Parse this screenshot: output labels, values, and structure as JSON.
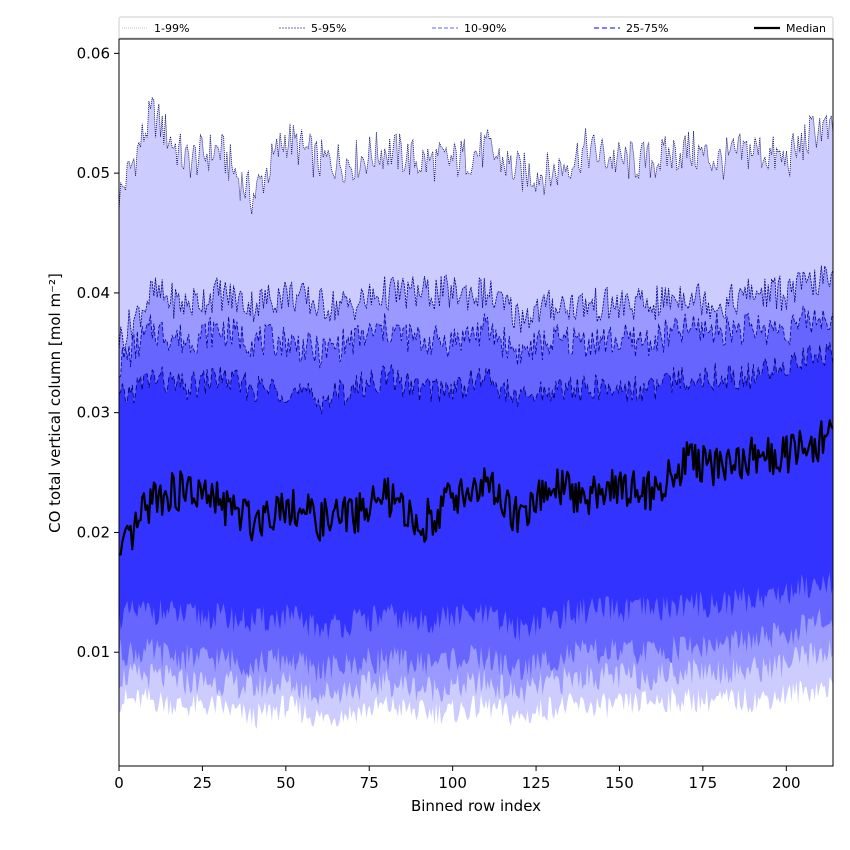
{
  "chart_data": {
    "type": "area",
    "xlabel": "Binned row index",
    "ylabel": "CO total vertical column [mol m⁻²]",
    "xlim": [
      0,
      214
    ],
    "ylim": [
      0.0005,
      0.0612
    ],
    "x_ticks": [
      0,
      25,
      50,
      75,
      100,
      125,
      150,
      175,
      200
    ],
    "y_ticks": [
      0.01,
      0.02,
      0.03,
      0.04,
      0.05,
      0.06
    ],
    "y_tick_labels": [
      "0.01",
      "0.02",
      "0.03",
      "0.04",
      "0.05",
      "0.06"
    ],
    "grid": false,
    "legend_position": "top",
    "colors": {
      "band_1_99": "#ccccff",
      "band_5_95": "#9999ff",
      "band_10_90": "#6666ff",
      "band_25_75": "#3333ff",
      "median": "#000000",
      "edge_1_99": "#000055",
      "edge_5_95": "#000080",
      "edge_10_90": "#0000a0",
      "edge_25_75": "#000060"
    },
    "x": [
      0,
      10,
      20,
      30,
      40,
      50,
      60,
      70,
      80,
      90,
      100,
      110,
      120,
      130,
      140,
      150,
      160,
      170,
      180,
      190,
      200,
      210,
      214
    ],
    "series": [
      {
        "name": "1-99%",
        "upper": [
          0.048,
          0.055,
          0.051,
          0.052,
          0.048,
          0.053,
          0.051,
          0.051,
          0.052,
          0.051,
          0.051,
          0.052,
          0.05,
          0.05,
          0.052,
          0.051,
          0.051,
          0.052,
          0.051,
          0.052,
          0.051,
          0.054,
          0.053
        ],
        "lower": [
          0.006,
          0.006,
          0.0055,
          0.0055,
          0.0045,
          0.0055,
          0.0045,
          0.005,
          0.0055,
          0.005,
          0.005,
          0.0055,
          0.0045,
          0.0055,
          0.0055,
          0.0055,
          0.006,
          0.006,
          0.006,
          0.006,
          0.0065,
          0.007,
          0.007
        ]
      },
      {
        "name": "5-95%",
        "upper": [
          0.036,
          0.04,
          0.039,
          0.04,
          0.039,
          0.04,
          0.039,
          0.039,
          0.04,
          0.04,
          0.04,
          0.04,
          0.038,
          0.039,
          0.039,
          0.039,
          0.039,
          0.04,
          0.039,
          0.04,
          0.04,
          0.041,
          0.041
        ],
        "lower": [
          0.008,
          0.008,
          0.0075,
          0.0075,
          0.007,
          0.0075,
          0.0065,
          0.007,
          0.0075,
          0.007,
          0.007,
          0.0075,
          0.0065,
          0.0075,
          0.008,
          0.008,
          0.008,
          0.0085,
          0.0085,
          0.0085,
          0.009,
          0.01,
          0.01
        ]
      },
      {
        "name": "10-90%",
        "upper": [
          0.034,
          0.037,
          0.036,
          0.037,
          0.036,
          0.036,
          0.035,
          0.036,
          0.037,
          0.036,
          0.036,
          0.037,
          0.035,
          0.036,
          0.036,
          0.036,
          0.036,
          0.037,
          0.037,
          0.037,
          0.037,
          0.038,
          0.038
        ],
        "lower": [
          0.01,
          0.01,
          0.0095,
          0.0095,
          0.009,
          0.0095,
          0.0085,
          0.009,
          0.0095,
          0.009,
          0.0095,
          0.0095,
          0.0085,
          0.0095,
          0.01,
          0.01,
          0.01,
          0.0105,
          0.0105,
          0.011,
          0.0115,
          0.0125,
          0.0125
        ]
      },
      {
        "name": "25-75%",
        "upper": [
          0.031,
          0.033,
          0.032,
          0.033,
          0.032,
          0.032,
          0.031,
          0.032,
          0.033,
          0.032,
          0.032,
          0.033,
          0.031,
          0.032,
          0.032,
          0.032,
          0.032,
          0.033,
          0.033,
          0.033,
          0.034,
          0.035,
          0.035
        ],
        "lower": [
          0.013,
          0.0135,
          0.013,
          0.013,
          0.0125,
          0.013,
          0.012,
          0.0125,
          0.013,
          0.0125,
          0.013,
          0.013,
          0.012,
          0.013,
          0.0135,
          0.0135,
          0.0135,
          0.014,
          0.014,
          0.0145,
          0.015,
          0.016,
          0.016
        ]
      },
      {
        "name": "Median",
        "values": [
          0.0175,
          0.023,
          0.0235,
          0.0225,
          0.021,
          0.0225,
          0.021,
          0.0215,
          0.023,
          0.0205,
          0.023,
          0.024,
          0.021,
          0.024,
          0.023,
          0.024,
          0.0235,
          0.026,
          0.0255,
          0.0265,
          0.0265,
          0.0275,
          0.0285
        ]
      }
    ],
    "legend": [
      {
        "label": "1-99%",
        "key": "s1"
      },
      {
        "label": "5-95%",
        "key": "s2"
      },
      {
        "label": "10-90%",
        "key": "s3"
      },
      {
        "label": "25-75%",
        "key": "s4"
      },
      {
        "label": "Median",
        "key": "median"
      }
    ]
  }
}
